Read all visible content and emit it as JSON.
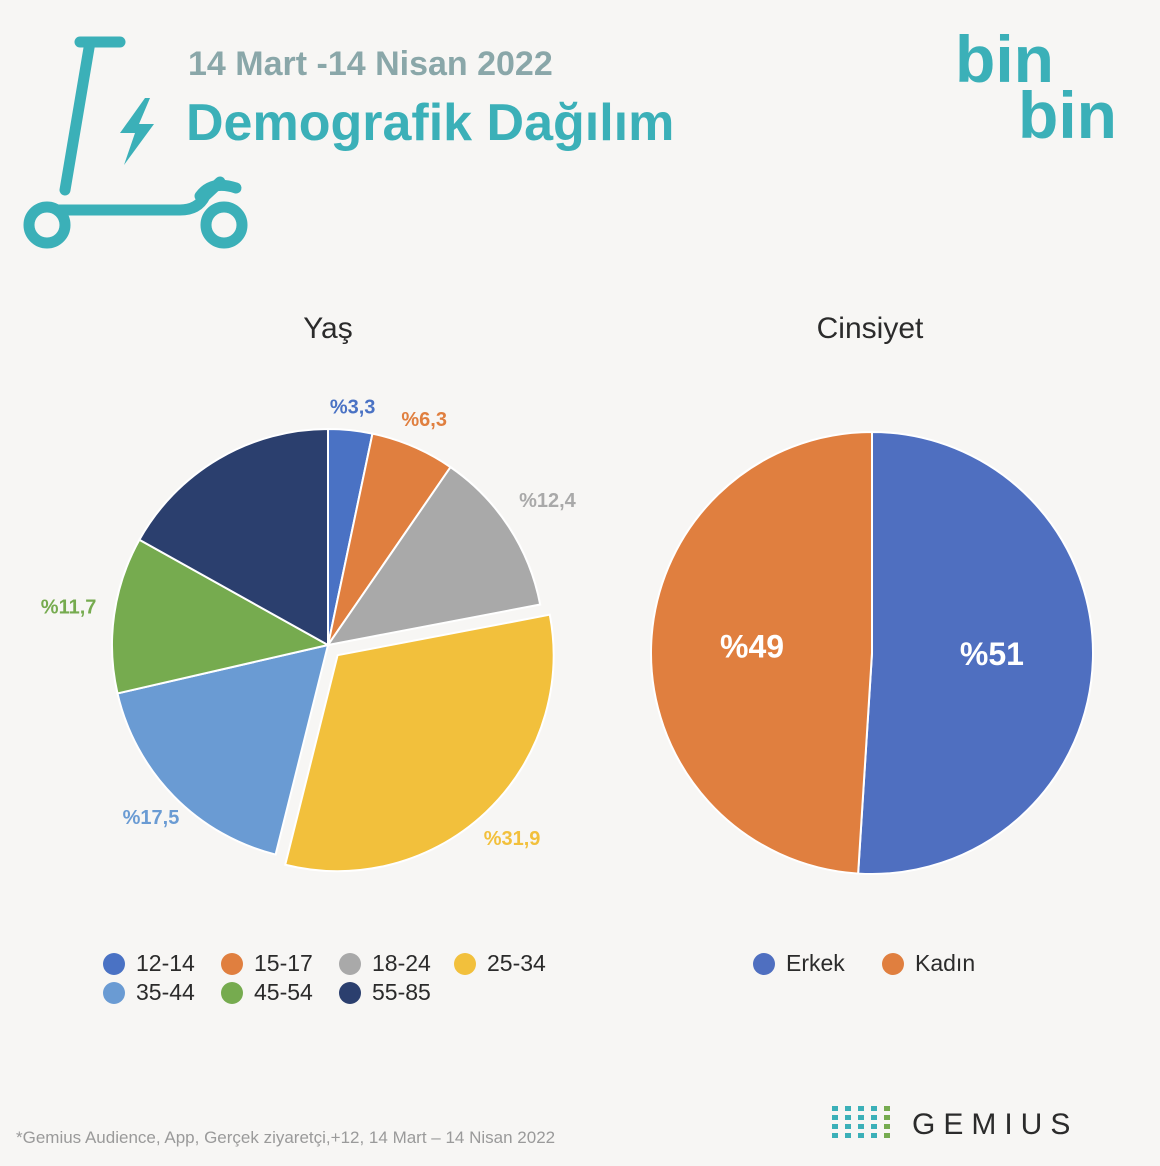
{
  "header": {
    "date_range": "14 Mart -14 Nisan 2022",
    "title": "Demografik Dağılım"
  },
  "brand": {
    "logo_line1": "bin",
    "logo_line2": "bin",
    "color": "#3bb0b8"
  },
  "icons": {
    "scooter": "electric-scooter-icon",
    "gemius_dots": "gemius-dot-grid-icon"
  },
  "colors": {
    "title_teal": "#3bb0b8",
    "date_grey": "#8aa7a9",
    "text_dark": "#2b2b2b",
    "footnote_grey": "#9a9a9a"
  },
  "chart_data": [
    {
      "type": "pie",
      "title": "Yaş",
      "categories": [
        "12-14",
        "15-17",
        "18-24",
        "25-34",
        "35-44",
        "45-54",
        "55-85"
      ],
      "values": [
        3.3,
        6.3,
        12.4,
        31.9,
        17.5,
        11.7,
        16.9
      ],
      "data_labels": [
        "%3,3",
        "%6,3",
        "%12,4",
        "%31,9",
        "%17,5",
        "%11,7",
        ""
      ],
      "colors": [
        "#4a72c4",
        "#e07f3f",
        "#a9a9a9",
        "#f2c03c",
        "#6a9bd3",
        "#76ab4f",
        "#2b3f6e"
      ],
      "exploded": "25-34",
      "legend": "bottom"
    },
    {
      "type": "pie",
      "title": "Cinsiyet",
      "categories": [
        "Erkek",
        "Kadın"
      ],
      "values": [
        51,
        49
      ],
      "data_labels": [
        "%51",
        "%49"
      ],
      "colors": [
        "#4f6fc0",
        "#e07f3f"
      ],
      "legend": "bottom"
    }
  ],
  "footer": {
    "note": "*Gemius Audience, App, Gerçek ziyaretçi,+12, 14 Mart – 14 Nisan 2022",
    "source_brand": "GEMIUS"
  }
}
